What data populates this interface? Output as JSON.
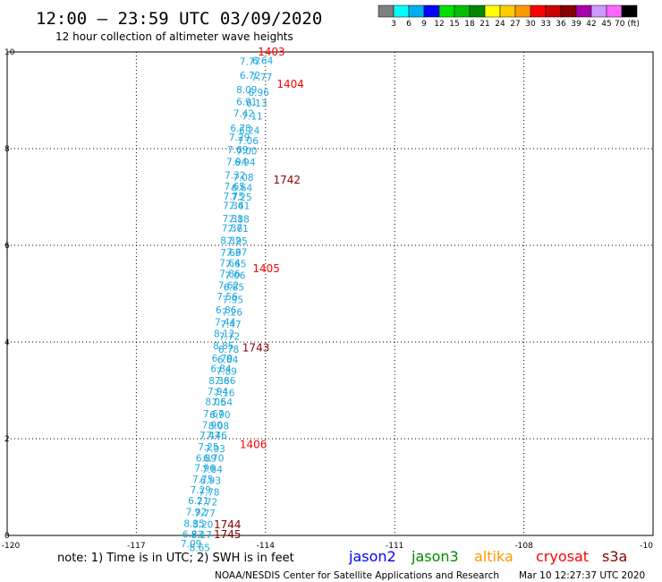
{
  "title": "12:00 – 23:59 UTC 03/09/2020",
  "subtitle": "12 hour collection of altimeter wave heights",
  "colorbar": {
    "colors": [
      "#808080",
      "#00ffff",
      "#00b0f0",
      "#0000ff",
      "#00e000",
      "#00c000",
      "#008800",
      "#ffff00",
      "#ffcc00",
      "#ff9900",
      "#ff0000",
      "#cc0000",
      "#880000",
      "#aa00aa",
      "#cc99ff",
      "#ff66ff",
      "#000000"
    ],
    "labels": [
      "3",
      "6",
      "9",
      "12",
      "15",
      "18",
      "21",
      "24",
      "27",
      "30",
      "33",
      "36",
      "39",
      "42",
      "45",
      "70 (ft)"
    ]
  },
  "chart_data": {
    "type": "scatter",
    "x_ticks": [
      "-120",
      "-117",
      "-114",
      "-111",
      "-108",
      "-10"
    ],
    "y_ticks": [
      "0",
      "2",
      "4",
      "6",
      "8",
      "10"
    ],
    "xlim": [
      -120,
      -105
    ],
    "ylim": [
      0,
      10
    ],
    "grid": true,
    "series": [
      {
        "point_color": "#1aa7dd",
        "points": [
          {
            "x": -114.6,
            "y": 9.81,
            "label": "7.77"
          },
          {
            "x": -114.31,
            "y": 9.82,
            "label": "6.64"
          },
          {
            "x": -114.6,
            "y": 9.52,
            "label": "6.72"
          },
          {
            "x": -114.33,
            "y": 9.48,
            "label": "7.77"
          },
          {
            "x": -114.68,
            "y": 9.22,
            "label": "8.09"
          },
          {
            "x": -114.4,
            "y": 9.17,
            "label": "6.96"
          },
          {
            "x": -114.68,
            "y": 8.97,
            "label": "6.91"
          },
          {
            "x": -114.45,
            "y": 8.94,
            "label": "6.13"
          },
          {
            "x": -114.75,
            "y": 8.73,
            "label": "7.42"
          },
          {
            "x": -114.55,
            "y": 8.68,
            "label": "7.11"
          },
          {
            "x": -114.82,
            "y": 8.43,
            "label": "6.78"
          },
          {
            "x": -114.62,
            "y": 8.38,
            "label": "6.24"
          },
          {
            "x": -114.85,
            "y": 8.24,
            "label": "7.29"
          },
          {
            "x": -114.65,
            "y": 8.17,
            "label": "7.06"
          },
          {
            "x": -114.89,
            "y": 7.98,
            "label": "7.69"
          },
          {
            "x": -114.68,
            "y": 7.95,
            "label": "7.00"
          },
          {
            "x": -114.91,
            "y": 7.73,
            "label": "7.94"
          },
          {
            "x": -114.72,
            "y": 7.72,
            "label": "6.94"
          },
          {
            "x": -114.95,
            "y": 7.45,
            "label": "7.32"
          },
          {
            "x": -114.76,
            "y": 7.41,
            "label": "7.08"
          },
          {
            "x": -114.96,
            "y": 7.22,
            "label": "7.65"
          },
          {
            "x": -114.79,
            "y": 7.19,
            "label": "6.64"
          },
          {
            "x": -114.98,
            "y": 7.02,
            "label": "7.75"
          },
          {
            "x": -114.8,
            "y": 7.0,
            "label": "7.25"
          },
          {
            "x": -114.99,
            "y": 6.82,
            "label": "7.34"
          },
          {
            "x": -114.85,
            "y": 6.82,
            "label": "7.61"
          },
          {
            "x": -115.0,
            "y": 6.56,
            "label": "7.31"
          },
          {
            "x": -114.86,
            "y": 6.55,
            "label": "7.88"
          },
          {
            "x": -115.02,
            "y": 6.36,
            "label": "7.37"
          },
          {
            "x": -114.88,
            "y": 6.35,
            "label": "7.61"
          },
          {
            "x": -115.05,
            "y": 6.1,
            "label": "8.32"
          },
          {
            "x": -114.9,
            "y": 6.09,
            "label": "7.95"
          },
          {
            "x": -115.05,
            "y": 5.85,
            "label": "7.69"
          },
          {
            "x": -114.91,
            "y": 5.86,
            "label": "7.87"
          },
          {
            "x": -115.07,
            "y": 5.64,
            "label": "7.64"
          },
          {
            "x": -114.93,
            "y": 5.62,
            "label": "7.65"
          },
          {
            "x": -115.07,
            "y": 5.42,
            "label": "7.86"
          },
          {
            "x": -114.95,
            "y": 5.38,
            "label": "7.06"
          },
          {
            "x": -115.1,
            "y": 5.18,
            "label": "7.62"
          },
          {
            "x": -114.98,
            "y": 5.14,
            "label": "6.85"
          },
          {
            "x": -115.13,
            "y": 4.94,
            "label": "7.56"
          },
          {
            "x": -115.0,
            "y": 4.88,
            "label": "7.95"
          },
          {
            "x": -115.16,
            "y": 4.67,
            "label": "6.86"
          },
          {
            "x": -115.02,
            "y": 4.62,
            "label": "7.26"
          },
          {
            "x": -115.18,
            "y": 4.42,
            "label": "7.44"
          },
          {
            "x": -115.05,
            "y": 4.37,
            "label": "7.47"
          },
          {
            "x": -115.2,
            "y": 4.18,
            "label": "8.12"
          },
          {
            "x": -115.08,
            "y": 4.12,
            "label": "7.72"
          },
          {
            "x": -115.22,
            "y": 3.93,
            "label": "8.85"
          },
          {
            "x": -115.1,
            "y": 3.85,
            "label": "6.78"
          },
          {
            "x": -115.25,
            "y": 3.67,
            "label": "6.79"
          },
          {
            "x": -115.12,
            "y": 3.64,
            "label": "6.64"
          },
          {
            "x": -115.28,
            "y": 3.45,
            "label": "6.84"
          },
          {
            "x": -115.15,
            "y": 3.4,
            "label": "7.89"
          },
          {
            "x": -115.32,
            "y": 3.2,
            "label": "8.36"
          },
          {
            "x": -115.18,
            "y": 3.2,
            "label": "7.86"
          },
          {
            "x": -115.35,
            "y": 2.98,
            "label": "7.94"
          },
          {
            "x": -115.2,
            "y": 2.95,
            "label": "7.16"
          },
          {
            "x": -115.4,
            "y": 2.77,
            "label": "8.06"
          },
          {
            "x": -115.25,
            "y": 2.76,
            "label": "7.54"
          },
          {
            "x": -115.45,
            "y": 2.52,
            "label": "7.67"
          },
          {
            "x": -115.3,
            "y": 2.5,
            "label": "6.90"
          },
          {
            "x": -115.48,
            "y": 2.29,
            "label": "7.90"
          },
          {
            "x": -115.33,
            "y": 2.27,
            "label": "8.08"
          },
          {
            "x": -115.53,
            "y": 2.07,
            "label": "7.47"
          },
          {
            "x": -115.38,
            "y": 2.07,
            "label": "7.46"
          },
          {
            "x": -115.57,
            "y": 1.83,
            "label": "7.25"
          },
          {
            "x": -115.42,
            "y": 1.8,
            "label": "7.93"
          },
          {
            "x": -115.62,
            "y": 1.6,
            "label": "6.89"
          },
          {
            "x": -115.45,
            "y": 1.6,
            "label": "6.70"
          },
          {
            "x": -115.65,
            "y": 1.4,
            "label": "7.96"
          },
          {
            "x": -115.48,
            "y": 1.37,
            "label": "7.84"
          },
          {
            "x": -115.7,
            "y": 1.17,
            "label": "7.75"
          },
          {
            "x": -115.52,
            "y": 1.14,
            "label": "6.93"
          },
          {
            "x": -115.75,
            "y": 0.94,
            "label": "7.29"
          },
          {
            "x": -115.55,
            "y": 0.9,
            "label": "7.78"
          },
          {
            "x": -115.8,
            "y": 0.72,
            "label": "6.21"
          },
          {
            "x": -115.6,
            "y": 0.69,
            "label": "7.72"
          },
          {
            "x": -115.85,
            "y": 0.49,
            "label": "7.92"
          },
          {
            "x": -115.65,
            "y": 0.46,
            "label": "7.77"
          },
          {
            "x": -115.9,
            "y": 0.25,
            "label": "8.35"
          },
          {
            "x": -115.7,
            "y": 0.23,
            "label": "8.20"
          },
          {
            "x": -115.93,
            "y": 0.03,
            "label": "6.83"
          },
          {
            "x": -115.73,
            "y": 0.02,
            "label": "8.17"
          },
          {
            "x": -115.97,
            "y": -0.17,
            "label": "7.09"
          },
          {
            "x": -115.77,
            "y": -0.25,
            "label": "8.65"
          }
        ]
      }
    ],
    "time_labels": [
      {
        "x": -114.18,
        "y": 10.0,
        "label": "1403",
        "color": "#ff0000"
      },
      {
        "x": -113.74,
        "y": 9.33,
        "label": "1404",
        "color": "#ff0000"
      },
      {
        "x": -113.82,
        "y": 7.35,
        "label": "1742",
        "color": "#880000"
      },
      {
        "x": -114.3,
        "y": 5.52,
        "label": "1405",
        "color": "#ff0000"
      },
      {
        "x": -114.54,
        "y": 3.88,
        "label": "1743",
        "color": "#880000"
      },
      {
        "x": -114.6,
        "y": 1.88,
        "label": "1406",
        "color": "#ff0000"
      },
      {
        "x": -115.2,
        "y": 0.22,
        "label": "1744",
        "color": "#880000"
      },
      {
        "x": -115.2,
        "y": 0.02,
        "label": "1745",
        "color": "#880000"
      }
    ]
  },
  "footer": {
    "note": "note:  1) Time is in UTC;  2) SWH is in feet",
    "satellites": [
      {
        "name": "jason2",
        "color": "#0000ff"
      },
      {
        "name": "jason3",
        "color": "#008800"
      },
      {
        "name": "altika",
        "color": "#ff9900"
      },
      {
        "name": "cryosat",
        "color": "#ff0000"
      },
      {
        "name": "s3a",
        "color": "#880000"
      }
    ],
    "credit": "NOAA/NESDIS Center for Satellite Applications and Research",
    "timestamp": "Mar 10 12:27:37 UTC 2020"
  }
}
